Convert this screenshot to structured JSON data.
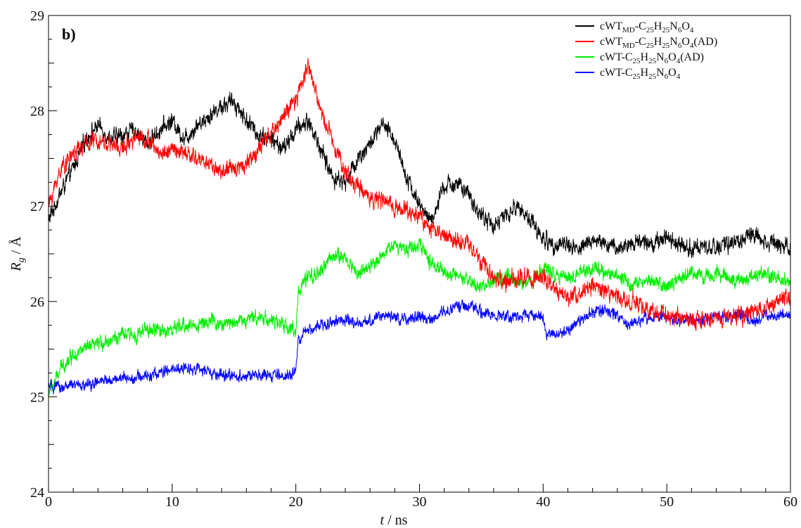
{
  "chart_data": {
    "type": "line",
    "panel_label": "b)",
    "xlabel_var": "t",
    "xlabel_unit": " / ns",
    "ylabel_var": "R",
    "ylabel_sub": "g",
    "ylabel_unit": " / Å",
    "xlim": [
      0,
      60
    ],
    "ylim": [
      24,
      29
    ],
    "xticks": [
      0,
      10,
      20,
      30,
      40,
      50,
      60
    ],
    "yticks": [
      24,
      25,
      26,
      27,
      28,
      29
    ],
    "legend_position": "top-right",
    "grid": false,
    "series": [
      {
        "legend": [
          [
            "cWT",
            ""
          ],
          [
            "MD",
            "sub"
          ],
          [
            "-C",
            ""
          ],
          [
            "25",
            "sub"
          ],
          [
            "H",
            ""
          ],
          [
            "25",
            "sub"
          ],
          [
            "N",
            ""
          ],
          [
            "6",
            "sub"
          ],
          [
            "O",
            ""
          ],
          [
            "4",
            "sub"
          ]
        ],
        "color": "#000000",
        "noise": 0.06,
        "x": [
          0,
          0.5,
          1,
          2,
          3,
          4,
          5,
          6,
          7,
          8,
          9,
          10,
          11,
          12,
          13,
          14,
          15,
          16,
          17,
          18,
          19,
          20,
          21,
          22,
          23,
          24,
          25,
          26,
          27,
          28,
          29,
          30,
          31,
          32,
          33,
          34,
          35,
          36,
          37,
          38,
          39,
          40,
          41,
          42,
          43,
          44,
          45,
          46,
          47,
          48,
          49,
          50,
          51,
          52,
          53,
          54,
          55,
          56,
          57,
          58,
          59,
          60
        ],
        "y": [
          26.85,
          27.0,
          27.15,
          27.4,
          27.7,
          27.85,
          27.7,
          27.75,
          27.8,
          27.65,
          27.8,
          27.9,
          27.7,
          27.85,
          27.95,
          28.05,
          28.1,
          27.9,
          27.75,
          27.7,
          27.6,
          27.8,
          27.9,
          27.6,
          27.3,
          27.25,
          27.5,
          27.65,
          27.85,
          27.7,
          27.3,
          27.0,
          26.85,
          27.2,
          27.25,
          27.1,
          26.9,
          26.8,
          26.9,
          27.0,
          26.85,
          26.65,
          26.6,
          26.6,
          26.55,
          26.65,
          26.6,
          26.55,
          26.6,
          26.65,
          26.6,
          26.7,
          26.6,
          26.55,
          26.6,
          26.55,
          26.6,
          26.65,
          26.7,
          26.65,
          26.6,
          26.6
        ]
      },
      {
        "legend": [
          [
            "cWT",
            ""
          ],
          [
            "MD",
            "sub"
          ],
          [
            "-C",
            ""
          ],
          [
            "25",
            "sub"
          ],
          [
            "H",
            ""
          ],
          [
            "25",
            "sub"
          ],
          [
            "N",
            ""
          ],
          [
            "6",
            "sub"
          ],
          [
            "O",
            ""
          ],
          [
            "4",
            "sub"
          ],
          [
            "(AD)",
            ""
          ]
        ],
        "color": "#ff0000",
        "noise": 0.06,
        "x": [
          0,
          0.5,
          1,
          2,
          3,
          4,
          5,
          6,
          7,
          8,
          9,
          10,
          11,
          12,
          13,
          14,
          15,
          16,
          17,
          18,
          19,
          20,
          21,
          22,
          23,
          24,
          25,
          26,
          27,
          28,
          29,
          30,
          31,
          32,
          33,
          34,
          35,
          36,
          37,
          38,
          39,
          40,
          41,
          42,
          43,
          44,
          45,
          46,
          47,
          48,
          49,
          50,
          51,
          52,
          53,
          54,
          55,
          56,
          57,
          58,
          59,
          60
        ],
        "y": [
          27.0,
          27.2,
          27.4,
          27.55,
          27.65,
          27.7,
          27.65,
          27.6,
          27.75,
          27.7,
          27.55,
          27.6,
          27.55,
          27.5,
          27.45,
          27.35,
          27.4,
          27.45,
          27.6,
          27.75,
          27.95,
          28.1,
          28.5,
          28.0,
          27.7,
          27.35,
          27.2,
          27.1,
          27.05,
          27.0,
          26.95,
          26.9,
          26.75,
          26.7,
          26.65,
          26.6,
          26.4,
          26.25,
          26.2,
          26.25,
          26.25,
          26.25,
          26.1,
          26.05,
          26.1,
          26.15,
          26.1,
          26.05,
          26.0,
          25.95,
          25.9,
          25.85,
          25.85,
          25.8,
          25.8,
          25.85,
          25.85,
          25.85,
          25.9,
          25.95,
          26.0,
          26.05
        ]
      },
      {
        "legend": [
          [
            "cWT-C",
            ""
          ],
          [
            "25",
            "sub"
          ],
          [
            "H",
            ""
          ],
          [
            "25",
            "sub"
          ],
          [
            "N",
            ""
          ],
          [
            "6",
            "sub"
          ],
          [
            "O",
            ""
          ],
          [
            "4",
            "sub"
          ],
          [
            "(AD)",
            ""
          ]
        ],
        "color": "#00ee00",
        "noise": 0.05,
        "x": [
          0,
          0.5,
          1,
          2,
          3,
          4,
          5,
          6,
          7,
          8,
          9,
          10,
          11,
          12,
          13,
          14,
          15,
          16,
          17,
          18,
          19,
          20,
          20.2,
          21,
          22,
          23,
          24,
          25,
          26,
          27,
          28,
          29,
          30,
          31,
          32,
          33,
          34,
          35,
          36,
          37,
          38,
          39,
          40,
          41,
          42,
          43,
          44,
          45,
          46,
          47,
          48,
          49,
          50,
          51,
          52,
          53,
          54,
          55,
          56,
          57,
          58,
          59,
          60
        ],
        "y": [
          25.05,
          25.15,
          25.3,
          25.45,
          25.5,
          25.55,
          25.6,
          25.65,
          25.65,
          25.7,
          25.7,
          25.7,
          25.75,
          25.75,
          25.8,
          25.75,
          25.8,
          25.8,
          25.85,
          25.8,
          25.75,
          25.7,
          26.1,
          26.25,
          26.3,
          26.5,
          26.45,
          26.3,
          26.35,
          26.5,
          26.6,
          26.55,
          26.6,
          26.4,
          26.3,
          26.25,
          26.2,
          26.15,
          26.2,
          26.25,
          26.2,
          26.2,
          26.35,
          26.3,
          26.25,
          26.3,
          26.35,
          26.3,
          26.25,
          26.2,
          26.2,
          26.2,
          26.15,
          26.25,
          26.3,
          26.25,
          26.3,
          26.25,
          26.2,
          26.25,
          26.3,
          26.25,
          26.2
        ]
      },
      {
        "legend": [
          [
            "cWT-C",
            ""
          ],
          [
            "25",
            "sub"
          ],
          [
            "H",
            ""
          ],
          [
            "25",
            "sub"
          ],
          [
            "N",
            ""
          ],
          [
            "6",
            "sub"
          ],
          [
            "O",
            ""
          ],
          [
            "4",
            "sub"
          ]
        ],
        "color": "#0000ff",
        "noise": 0.04,
        "x": [
          0,
          0.5,
          1,
          2,
          3,
          4,
          5,
          6,
          7,
          8,
          9,
          10,
          11,
          12,
          13,
          14,
          15,
          16,
          17,
          18,
          19,
          20,
          20.2,
          21,
          22,
          23,
          24,
          25,
          26,
          27,
          28,
          29,
          30,
          31,
          32,
          33,
          34,
          35,
          36,
          37,
          38,
          39,
          40,
          40.2,
          41,
          42,
          43,
          44,
          45,
          46,
          47,
          48,
          49,
          50,
          51,
          52,
          53,
          54,
          55,
          56,
          57,
          58,
          59,
          60
        ],
        "y": [
          25.1,
          25.1,
          25.1,
          25.12,
          25.12,
          25.15,
          25.18,
          25.2,
          25.2,
          25.22,
          25.25,
          25.28,
          25.3,
          25.3,
          25.25,
          25.22,
          25.22,
          25.22,
          25.22,
          25.22,
          25.22,
          25.25,
          25.6,
          25.7,
          25.75,
          25.8,
          25.8,
          25.75,
          25.8,
          25.85,
          25.85,
          25.8,
          25.85,
          25.8,
          25.9,
          25.95,
          25.95,
          25.9,
          25.85,
          25.85,
          25.85,
          25.85,
          25.85,
          25.65,
          25.65,
          25.7,
          25.8,
          25.9,
          25.9,
          25.85,
          25.75,
          25.8,
          25.85,
          25.85,
          25.8,
          25.8,
          25.8,
          25.85,
          25.85,
          25.85,
          25.8,
          25.85,
          25.85,
          25.85
        ]
      }
    ]
  }
}
